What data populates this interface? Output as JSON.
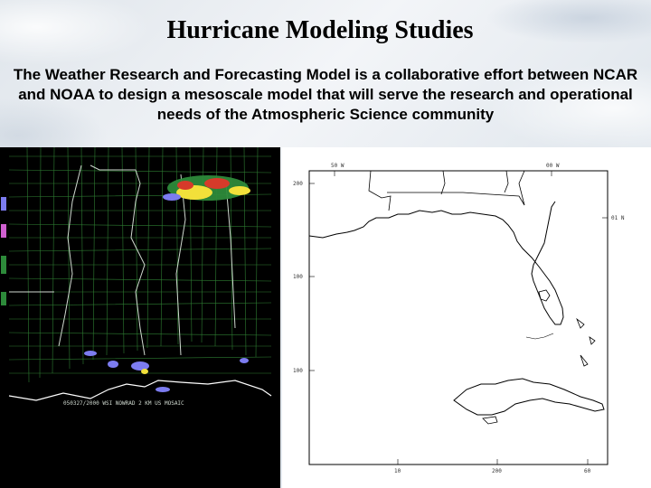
{
  "slide": {
    "title": "Hurricane Modeling Studies",
    "subtitle": "The Weather Research and Forecasting Model is a collaborative effort between NCAR and NOAA to design a mesoscale model that will serve the research and operational needs of the Atmospheric Science community"
  },
  "radar_image": {
    "caption": "050327/2000 WSI NOWRAD 2 KM US MOSAIC",
    "colors": {
      "background": "#000000",
      "borders": "#2e7d32",
      "coast": "#ffffff",
      "echo_light": "#2d8a3a",
      "echo_medium": "#f2e03a",
      "echo_heavy": "#d63a2a",
      "echo_cold": "#7c7cf0"
    }
  },
  "domain_map": {
    "lat_labels": [
      "200",
      "100",
      "100"
    ],
    "top_labels": [
      "50 W",
      "00 W"
    ],
    "right_label": "01 N",
    "bottom_labels": [
      "10",
      "200",
      "60"
    ],
    "colors": {
      "line": "#000000",
      "frame": "#000000",
      "background": "#ffffff"
    }
  }
}
